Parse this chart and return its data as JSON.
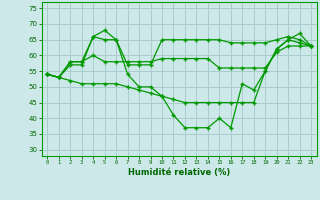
{
  "xlabel": "Humidité relative (%)",
  "xlim": [
    -0.5,
    23.5
  ],
  "ylim": [
    28,
    77
  ],
  "yticks": [
    30,
    35,
    40,
    45,
    50,
    55,
    60,
    65,
    70,
    75
  ],
  "xticks": [
    0,
    1,
    2,
    3,
    4,
    5,
    6,
    7,
    8,
    9,
    10,
    11,
    12,
    13,
    14,
    15,
    16,
    17,
    18,
    19,
    20,
    21,
    22,
    23
  ],
  "bg_color": "#cce8e8",
  "grid_color": "#aacccc",
  "line_color": "#009900",
  "line1": [
    54,
    53,
    57,
    57,
    66,
    68,
    65,
    54,
    50,
    50,
    47,
    41,
    37,
    37,
    37,
    40,
    37,
    51,
    49,
    55,
    62,
    65,
    67,
    63
  ],
  "line2": [
    54,
    53,
    58,
    58,
    66,
    65,
    65,
    57,
    57,
    57,
    65,
    65,
    65,
    65,
    65,
    65,
    64,
    64,
    64,
    64,
    65,
    66,
    65,
    63
  ],
  "line3": [
    54,
    53,
    58,
    58,
    60,
    58,
    58,
    58,
    58,
    58,
    59,
    59,
    59,
    59,
    59,
    56,
    56,
    56,
    56,
    56,
    61,
    63,
    63,
    63
  ],
  "line4": [
    54,
    53,
    52,
    51,
    51,
    51,
    51,
    50,
    49,
    48,
    47,
    46,
    45,
    45,
    45,
    45,
    45,
    45,
    45,
    55,
    62,
    65,
    64,
    63
  ]
}
